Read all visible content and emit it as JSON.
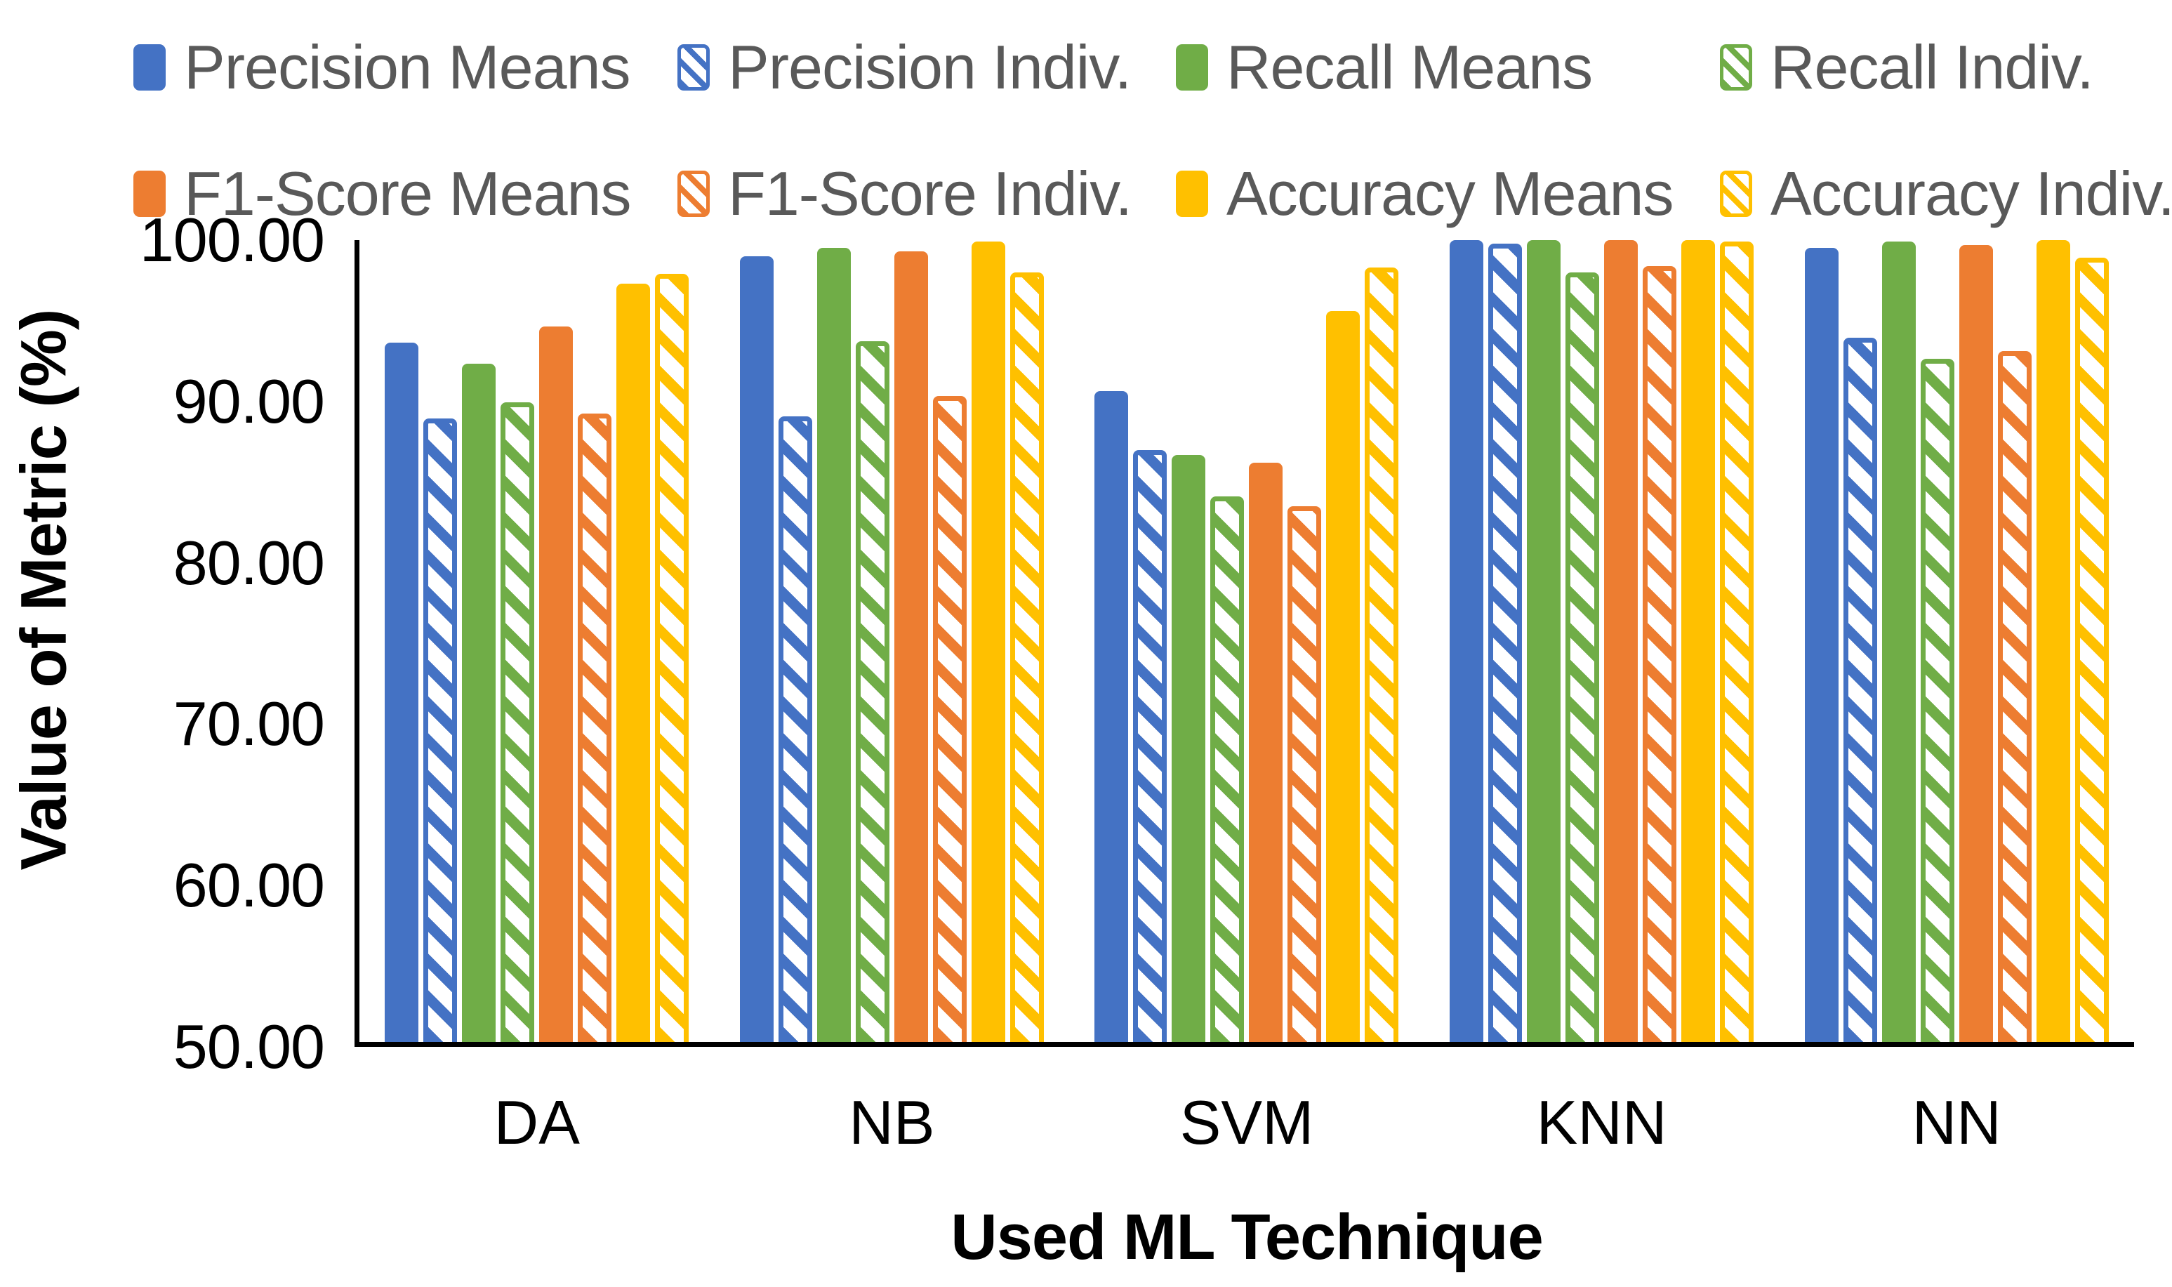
{
  "chart_data": {
    "type": "bar",
    "title": "",
    "xlabel": "Used ML Technique",
    "ylabel": "Value of Metric (%)",
    "ylim": [
      50,
      100
    ],
    "ytick_labels": [
      "100.00",
      "90.00",
      "80.00",
      "70.00",
      "60.00",
      "50.00"
    ],
    "grid": false,
    "legend_position": "top",
    "legend_rows": 2,
    "categories": [
      "DA",
      "NB",
      "SVM",
      "KNN",
      "NN"
    ],
    "series": [
      {
        "name": "Precision Means",
        "color": "#4472C4",
        "pattern": "solid",
        "values": [
          93.6,
          99.0,
          90.6,
          100.0,
          99.5
        ]
      },
      {
        "name": "Precision Indiv.",
        "color": "#4472C4",
        "pattern": "hatched",
        "values": [
          88.9,
          89.0,
          86.9,
          99.8,
          93.9
        ]
      },
      {
        "name": "Recall Means",
        "color": "#70AD47",
        "pattern": "solid",
        "values": [
          92.3,
          99.5,
          86.6,
          100.0,
          99.9
        ]
      },
      {
        "name": "Recall Indiv.",
        "color": "#70AD47",
        "pattern": "hatched",
        "values": [
          89.9,
          93.7,
          84.0,
          98.0,
          92.6
        ]
      },
      {
        "name": "F1-Score Means",
        "color": "#ED7D31",
        "pattern": "solid",
        "values": [
          94.6,
          99.3,
          86.1,
          100.0,
          99.7
        ]
      },
      {
        "name": "F1-Score Indiv.",
        "color": "#ED7D31",
        "pattern": "hatched",
        "values": [
          89.2,
          90.3,
          83.4,
          98.4,
          93.1
        ]
      },
      {
        "name": "Accuracy Means",
        "color": "#FFC000",
        "pattern": "solid",
        "values": [
          97.3,
          99.9,
          95.6,
          100.0,
          100.0
        ]
      },
      {
        "name": "Accuracy Indiv.",
        "color": "#FFC000",
        "pattern": "hatched",
        "values": [
          97.9,
          98.0,
          98.3,
          99.9,
          98.9
        ]
      }
    ],
    "colors": {
      "blue": "#4472C4",
      "green": "#70AD47",
      "orange": "#ED7D31",
      "gold": "#FFC000",
      "legend_text": "#595959",
      "axis": "#000000"
    },
    "legend_order": [
      "Precision Means",
      "Precision Indiv.",
      "Recall Means",
      "Recall Indiv.",
      "F1-Score Means",
      "F1-Score Indiv.",
      "Accuracy Means",
      "Accuracy Indiv."
    ]
  }
}
